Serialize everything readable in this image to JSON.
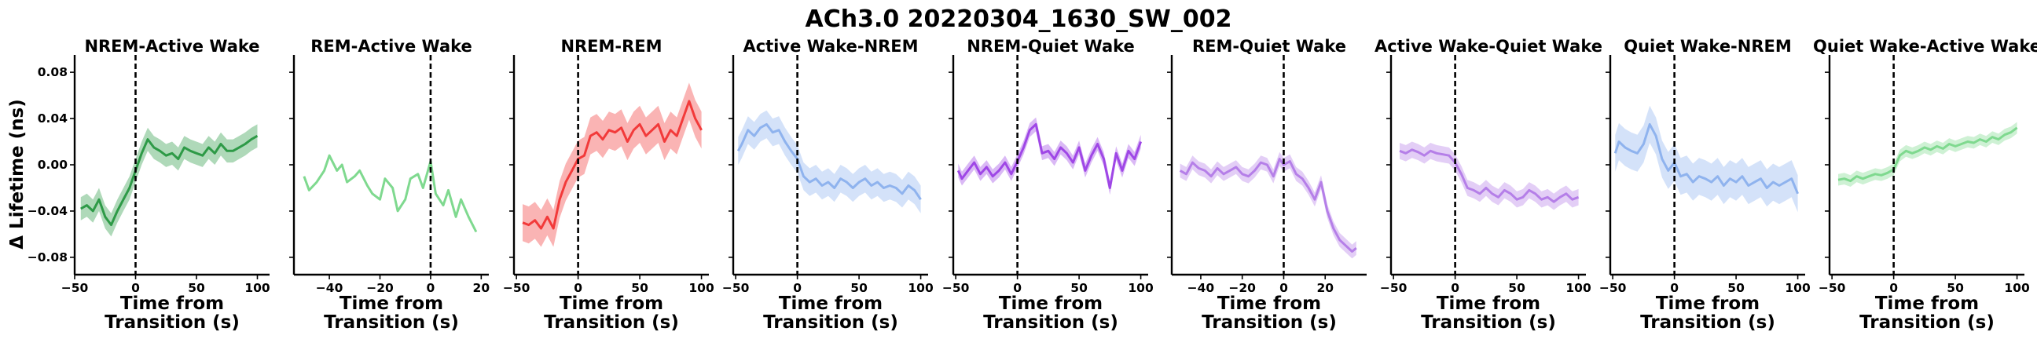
{
  "figure": {
    "suptitle": "ACh3.0 20220304_1630_SW_002",
    "ylabel": "Δ Lifetime (ns)",
    "xlabel_line1": "Time from",
    "xlabel_line2": "Transition (s)"
  },
  "colors": {
    "green": "#2e9a47",
    "light_green": "#7fd98f",
    "red": "#f23a3a",
    "blue": "#8fb3ee",
    "purple": "#9f47e6",
    "lavender": "#b57fe8"
  },
  "chart_data": [
    {
      "type": "line",
      "title": "NREM-Active Wake",
      "color": "#2e9a47",
      "band": 0.01,
      "xlim": [
        -50,
        110
      ],
      "ylim": [
        -0.095,
        0.095
      ],
      "xticks": [
        -50,
        0,
        50,
        100
      ],
      "yticks": [
        -0.08,
        -0.04,
        0.0,
        0.04,
        0.08
      ],
      "ytick_labels": [
        "−0.08",
        "−0.04",
        "0.00",
        "0.04",
        "0.08"
      ],
      "x": [
        -45,
        -40,
        -35,
        -30,
        -25,
        -20,
        -15,
        -10,
        -5,
        0,
        5,
        10,
        15,
        20,
        25,
        30,
        35,
        40,
        45,
        50,
        55,
        60,
        65,
        70,
        75,
        80,
        85,
        90,
        95,
        100
      ],
      "y": [
        -0.038,
        -0.035,
        -0.04,
        -0.03,
        -0.045,
        -0.052,
        -0.04,
        -0.03,
        -0.02,
        -0.005,
        0.01,
        0.022,
        0.015,
        0.012,
        0.008,
        0.01,
        0.005,
        0.015,
        0.012,
        0.01,
        0.008,
        0.015,
        0.01,
        0.018,
        0.012,
        0.012,
        0.015,
        0.018,
        0.022,
        0.025
      ]
    },
    {
      "type": "line",
      "title": "REM-Active Wake",
      "color": "#7fd98f",
      "band": 0.0,
      "xlim": [
        -54,
        23
      ],
      "ylim": [
        -0.095,
        0.095
      ],
      "xticks": [
        -40,
        -20,
        0,
        20
      ],
      "xtick_labels": [
        "−40",
        "−20",
        "0",
        "20"
      ],
      "x": [
        -50,
        -48,
        -45,
        -42,
        -40,
        -37,
        -35,
        -33,
        -30,
        -28,
        -25,
        -23,
        -20,
        -18,
        -15,
        -13,
        -10,
        -8,
        -5,
        -3,
        0,
        2,
        5,
        7,
        10,
        12,
        15,
        18
      ],
      "y": [
        -0.01,
        -0.022,
        -0.015,
        -0.005,
        0.008,
        -0.005,
        0.0,
        -0.015,
        -0.01,
        -0.005,
        -0.018,
        -0.025,
        -0.03,
        -0.012,
        -0.02,
        -0.04,
        -0.03,
        -0.012,
        -0.008,
        -0.02,
        0.003,
        -0.025,
        -0.035,
        -0.022,
        -0.045,
        -0.03,
        -0.045,
        -0.058
      ]
    },
    {
      "type": "line",
      "title": "NREM-REM",
      "color": "#f23a3a",
      "band": 0.016,
      "xlim": [
        -52,
        106
      ],
      "ylim": [
        -0.095,
        0.095
      ],
      "xticks": [
        -50,
        0,
        50,
        100
      ],
      "x": [
        -45,
        -40,
        -35,
        -30,
        -25,
        -20,
        -15,
        -10,
        -5,
        0,
        5,
        10,
        15,
        20,
        25,
        30,
        35,
        40,
        45,
        50,
        55,
        60,
        65,
        70,
        75,
        80,
        85,
        90,
        95,
        100
      ],
      "y": [
        -0.05,
        -0.052,
        -0.048,
        -0.055,
        -0.045,
        -0.055,
        -0.03,
        -0.015,
        -0.005,
        0.005,
        0.008,
        0.025,
        0.028,
        0.022,
        0.03,
        0.028,
        0.032,
        0.02,
        0.03,
        0.035,
        0.025,
        0.03,
        0.035,
        0.02,
        0.03,
        0.025,
        0.04,
        0.055,
        0.04,
        0.03
      ]
    },
    {
      "type": "line",
      "title": "Active Wake-NREM",
      "color": "#8fb3ee",
      "band": 0.012,
      "xlim": [
        -52,
        106
      ],
      "ylim": [
        -0.095,
        0.095
      ],
      "xticks": [
        -50,
        0,
        50,
        100
      ],
      "x": [
        -48,
        -45,
        -40,
        -35,
        -30,
        -25,
        -20,
        -15,
        -10,
        -5,
        0,
        5,
        10,
        15,
        20,
        25,
        30,
        35,
        40,
        45,
        50,
        55,
        60,
        65,
        70,
        75,
        80,
        85,
        90,
        95,
        100
      ],
      "y": [
        0.012,
        0.018,
        0.03,
        0.025,
        0.032,
        0.035,
        0.028,
        0.03,
        0.02,
        0.012,
        0.005,
        -0.01,
        -0.015,
        -0.012,
        -0.018,
        -0.015,
        -0.02,
        -0.012,
        -0.015,
        -0.02,
        -0.015,
        -0.012,
        -0.018,
        -0.015,
        -0.02,
        -0.018,
        -0.02,
        -0.025,
        -0.018,
        -0.022,
        -0.03
      ]
    },
    {
      "type": "line",
      "title": "NREM-Quiet Wake",
      "color": "#9f47e6",
      "band": 0.006,
      "xlim": [
        -52,
        106
      ],
      "ylim": [
        -0.095,
        0.095
      ],
      "xticks": [
        -50,
        0,
        50,
        100
      ],
      "x": [
        -48,
        -45,
        -40,
        -35,
        -30,
        -25,
        -20,
        -15,
        -10,
        -5,
        0,
        5,
        10,
        15,
        20,
        25,
        30,
        35,
        40,
        45,
        50,
        55,
        60,
        65,
        70,
        75,
        80,
        85,
        90,
        95,
        100
      ],
      "y": [
        -0.005,
        -0.012,
        -0.005,
        0.002,
        -0.008,
        -0.002,
        -0.01,
        -0.005,
        0.002,
        -0.008,
        0.003,
        0.015,
        0.03,
        0.035,
        0.01,
        0.012,
        0.005,
        0.015,
        0.01,
        0.002,
        0.015,
        -0.005,
        0.008,
        0.018,
        0.005,
        -0.02,
        0.01,
        -0.005,
        0.012,
        0.005,
        0.02
      ]
    },
    {
      "type": "line",
      "title": "REM-Quiet Wake",
      "color": "#b57fe8",
      "band": 0.006,
      "xlim": [
        -54,
        40
      ],
      "ylim": [
        -0.095,
        0.095
      ],
      "xticks": [
        -40,
        -20,
        0,
        20
      ],
      "xtick_labels": [
        "−40",
        "−20",
        "0",
        "20"
      ],
      "x": [
        -50,
        -47,
        -44,
        -41,
        -38,
        -35,
        -32,
        -29,
        -26,
        -23,
        -20,
        -17,
        -14,
        -11,
        -8,
        -5,
        -2,
        0,
        3,
        6,
        9,
        12,
        15,
        18,
        21,
        24,
        27,
        30,
        33,
        35
      ],
      "y": [
        -0.005,
        -0.008,
        0.002,
        -0.003,
        -0.005,
        -0.01,
        -0.003,
        -0.008,
        -0.005,
        -0.002,
        -0.008,
        -0.01,
        -0.005,
        0.002,
        0.0,
        -0.01,
        0.005,
        0.0,
        0.003,
        -0.008,
        -0.012,
        -0.02,
        -0.03,
        -0.015,
        -0.04,
        -0.055,
        -0.065,
        -0.07,
        -0.075,
        -0.072
      ]
    },
    {
      "type": "line",
      "title": "Active Wake-Quiet Wake",
      "color": "#b57fe8",
      "band": 0.007,
      "xlim": [
        -52,
        106
      ],
      "ylim": [
        -0.095,
        0.095
      ],
      "xticks": [
        -50,
        0,
        50,
        100
      ],
      "x": [
        -45,
        -40,
        -35,
        -30,
        -25,
        -20,
        -15,
        -10,
        -5,
        0,
        5,
        10,
        15,
        20,
        25,
        30,
        35,
        40,
        45,
        50,
        55,
        60,
        65,
        70,
        75,
        80,
        85,
        90,
        95,
        100
      ],
      "y": [
        0.012,
        0.01,
        0.013,
        0.011,
        0.008,
        0.012,
        0.01,
        0.009,
        0.008,
        0.002,
        -0.008,
        -0.02,
        -0.022,
        -0.025,
        -0.02,
        -0.025,
        -0.028,
        -0.022,
        -0.025,
        -0.03,
        -0.028,
        -0.022,
        -0.025,
        -0.03,
        -0.028,
        -0.032,
        -0.028,
        -0.025,
        -0.03,
        -0.028
      ]
    },
    {
      "type": "line",
      "title": "Quiet Wake-NREM",
      "color": "#8fb3ee",
      "band": 0.016,
      "xlim": [
        -52,
        106
      ],
      "ylim": [
        -0.095,
        0.095
      ],
      "xticks": [
        -50,
        0,
        50,
        100
      ],
      "x": [
        -48,
        -45,
        -40,
        -35,
        -30,
        -25,
        -20,
        -15,
        -10,
        -5,
        0,
        5,
        10,
        15,
        20,
        25,
        30,
        35,
        40,
        45,
        50,
        55,
        60,
        65,
        70,
        75,
        80,
        85,
        90,
        95,
        100
      ],
      "y": [
        0.01,
        0.02,
        0.015,
        0.012,
        0.01,
        0.018,
        0.035,
        0.025,
        0.005,
        -0.005,
        0.002,
        -0.01,
        -0.008,
        -0.015,
        -0.01,
        -0.012,
        -0.015,
        -0.01,
        -0.018,
        -0.012,
        -0.015,
        -0.01,
        -0.018,
        -0.015,
        -0.012,
        -0.02,
        -0.015,
        -0.018,
        -0.015,
        -0.012,
        -0.025
      ]
    },
    {
      "type": "line",
      "title": "Quiet Wake-Active Wake",
      "color": "#7fd98f",
      "band": 0.005,
      "xlim": [
        -52,
        106
      ],
      "ylim": [
        -0.095,
        0.095
      ],
      "xticks": [
        -50,
        0,
        50,
        100
      ],
      "x": [
        -45,
        -40,
        -35,
        -30,
        -25,
        -20,
        -15,
        -10,
        -5,
        0,
        5,
        10,
        15,
        20,
        25,
        30,
        35,
        40,
        45,
        50,
        55,
        60,
        65,
        70,
        75,
        80,
        85,
        90,
        95,
        100
      ],
      "y": [
        -0.013,
        -0.012,
        -0.014,
        -0.01,
        -0.012,
        -0.01,
        -0.008,
        -0.009,
        -0.007,
        -0.004,
        0.008,
        0.012,
        0.01,
        0.012,
        0.015,
        0.013,
        0.016,
        0.014,
        0.018,
        0.016,
        0.018,
        0.02,
        0.019,
        0.022,
        0.02,
        0.024,
        0.022,
        0.026,
        0.028,
        0.032
      ]
    }
  ]
}
